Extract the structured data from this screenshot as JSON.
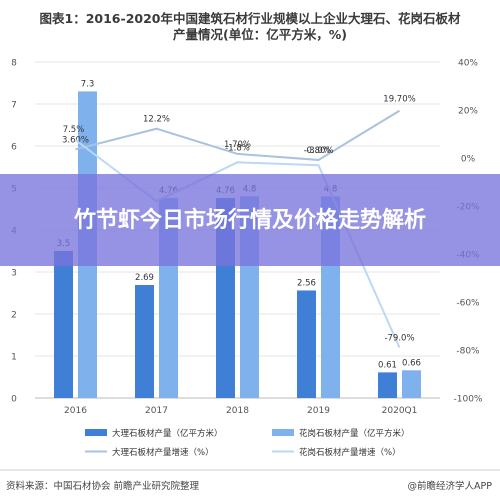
{
  "title": "图表1：2016-2020年中国建筑石材行业规模以上企业大理石、花岗石板材",
  "title_line2": "产量情况(单位：亿平方米，%)",
  "banner": "竹节虾今日市场行情及价格走势解析",
  "source": "资料来源：中国石材协会 前瞻产业研究院整理",
  "brand": "@前瞻经济学人APP",
  "colors": {
    "marble_bar": "#3f7fd6",
    "granite_bar": "#7fb2ec",
    "marble_line": "#a9c2e0",
    "granite_line": "#bcd8f2"
  },
  "chart_data": {
    "type": "bar",
    "categories": [
      "2016",
      "2017",
      "2018",
      "2019",
      "2020Q1"
    ],
    "ylim": [
      0,
      8
    ],
    "yticks": [
      "0",
      "1",
      "2",
      "3",
      "4",
      "5",
      "6",
      "7",
      "8"
    ],
    "y2lim": [
      -100,
      40
    ],
    "y2ticks": [
      "-100%",
      "-80%",
      "-60%",
      "-40%",
      "-20%",
      "0%",
      "20%",
      "40%"
    ],
    "series": [
      {
        "name": "大理石板材产量（亿平方米）",
        "kind": "bar",
        "axis": "left",
        "values": [
          3.5,
          2.69,
          4.76,
          2.56,
          0.61
        ],
        "labels": [
          "3.5",
          "2.69",
          "4.76",
          "2.56",
          "0.61"
        ]
      },
      {
        "name": "花岗石板材产量（亿平方米）",
        "kind": "bar",
        "axis": "left",
        "values": [
          7.3,
          4.76,
          4.8,
          4.8,
          0.66
        ],
        "labels": [
          "7.3",
          "4.76",
          "4.8",
          "4.8",
          "0.66"
        ]
      },
      {
        "name": "大理石板材产量增速（%）",
        "kind": "line",
        "axis": "right",
        "values": [
          3.6,
          12.2,
          1.7,
          -0.8,
          19.7
        ],
        "labels": [
          "3.60%",
          "12.2%",
          "1.70%",
          "-0.80%",
          "19.70%"
        ]
      },
      {
        "name": "花岗石板材产量增速（%）",
        "kind": "line",
        "axis": "right",
        "values": [
          7.5,
          -18.0,
          -1.8,
          -3.0,
          -79.0
        ],
        "labels": [
          "7.5%",
          "",
          "-1.8%",
          "-3.0%",
          "-79.0%"
        ]
      }
    ]
  }
}
